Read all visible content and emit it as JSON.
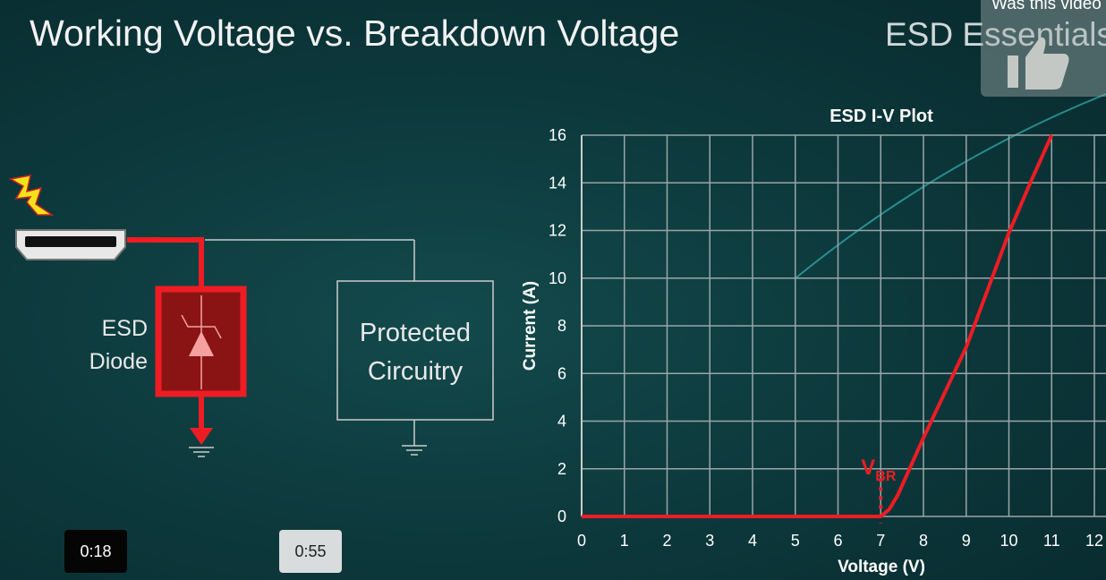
{
  "slide": {
    "title": "Working Voltage vs. Breakdown Voltage",
    "brand": "ESD Essentials",
    "diode_label_line1": "ESD",
    "diode_label_line2": "Diode",
    "box_label_line1": "Protected",
    "box_label_line2": "Circuitry"
  },
  "overlay": {
    "feedback_text": "Was this video helpful?",
    "feedback_icon": "thumbs-up-icon"
  },
  "player": {
    "timestamp_left": "0:18",
    "timestamp_right": "0:55"
  },
  "colors": {
    "curve": "#ee1c24",
    "grid": "#9aa6a6",
    "accent": "#ff2020"
  },
  "chart_data": {
    "type": "line",
    "title": "ESD I-V Plot",
    "xlabel": "Voltage (V)",
    "ylabel": "Current (A)",
    "xlim": [
      0,
      12
    ],
    "ylim": [
      0,
      16
    ],
    "xticks": [
      "0",
      "1",
      "2",
      "3",
      "4",
      "5",
      "6",
      "7",
      "8",
      "9",
      "10",
      "11",
      "12"
    ],
    "yticks": [
      "0",
      "2",
      "4",
      "6",
      "8",
      "10",
      "12",
      "14",
      "16"
    ],
    "grid": true,
    "annotation": {
      "text": "V",
      "subscript": "BR",
      "x": 7
    },
    "series": [
      {
        "x": [
          0,
          6,
          7,
          7.2,
          7.4,
          7.6,
          7.8,
          8,
          8.5,
          9,
          9.5,
          10,
          10.5,
          11
        ],
        "y": [
          0,
          0,
          0,
          0.3,
          0.9,
          1.7,
          2.5,
          3.3,
          5.2,
          7.1,
          9.5,
          11.9,
          14,
          16
        ]
      }
    ]
  }
}
